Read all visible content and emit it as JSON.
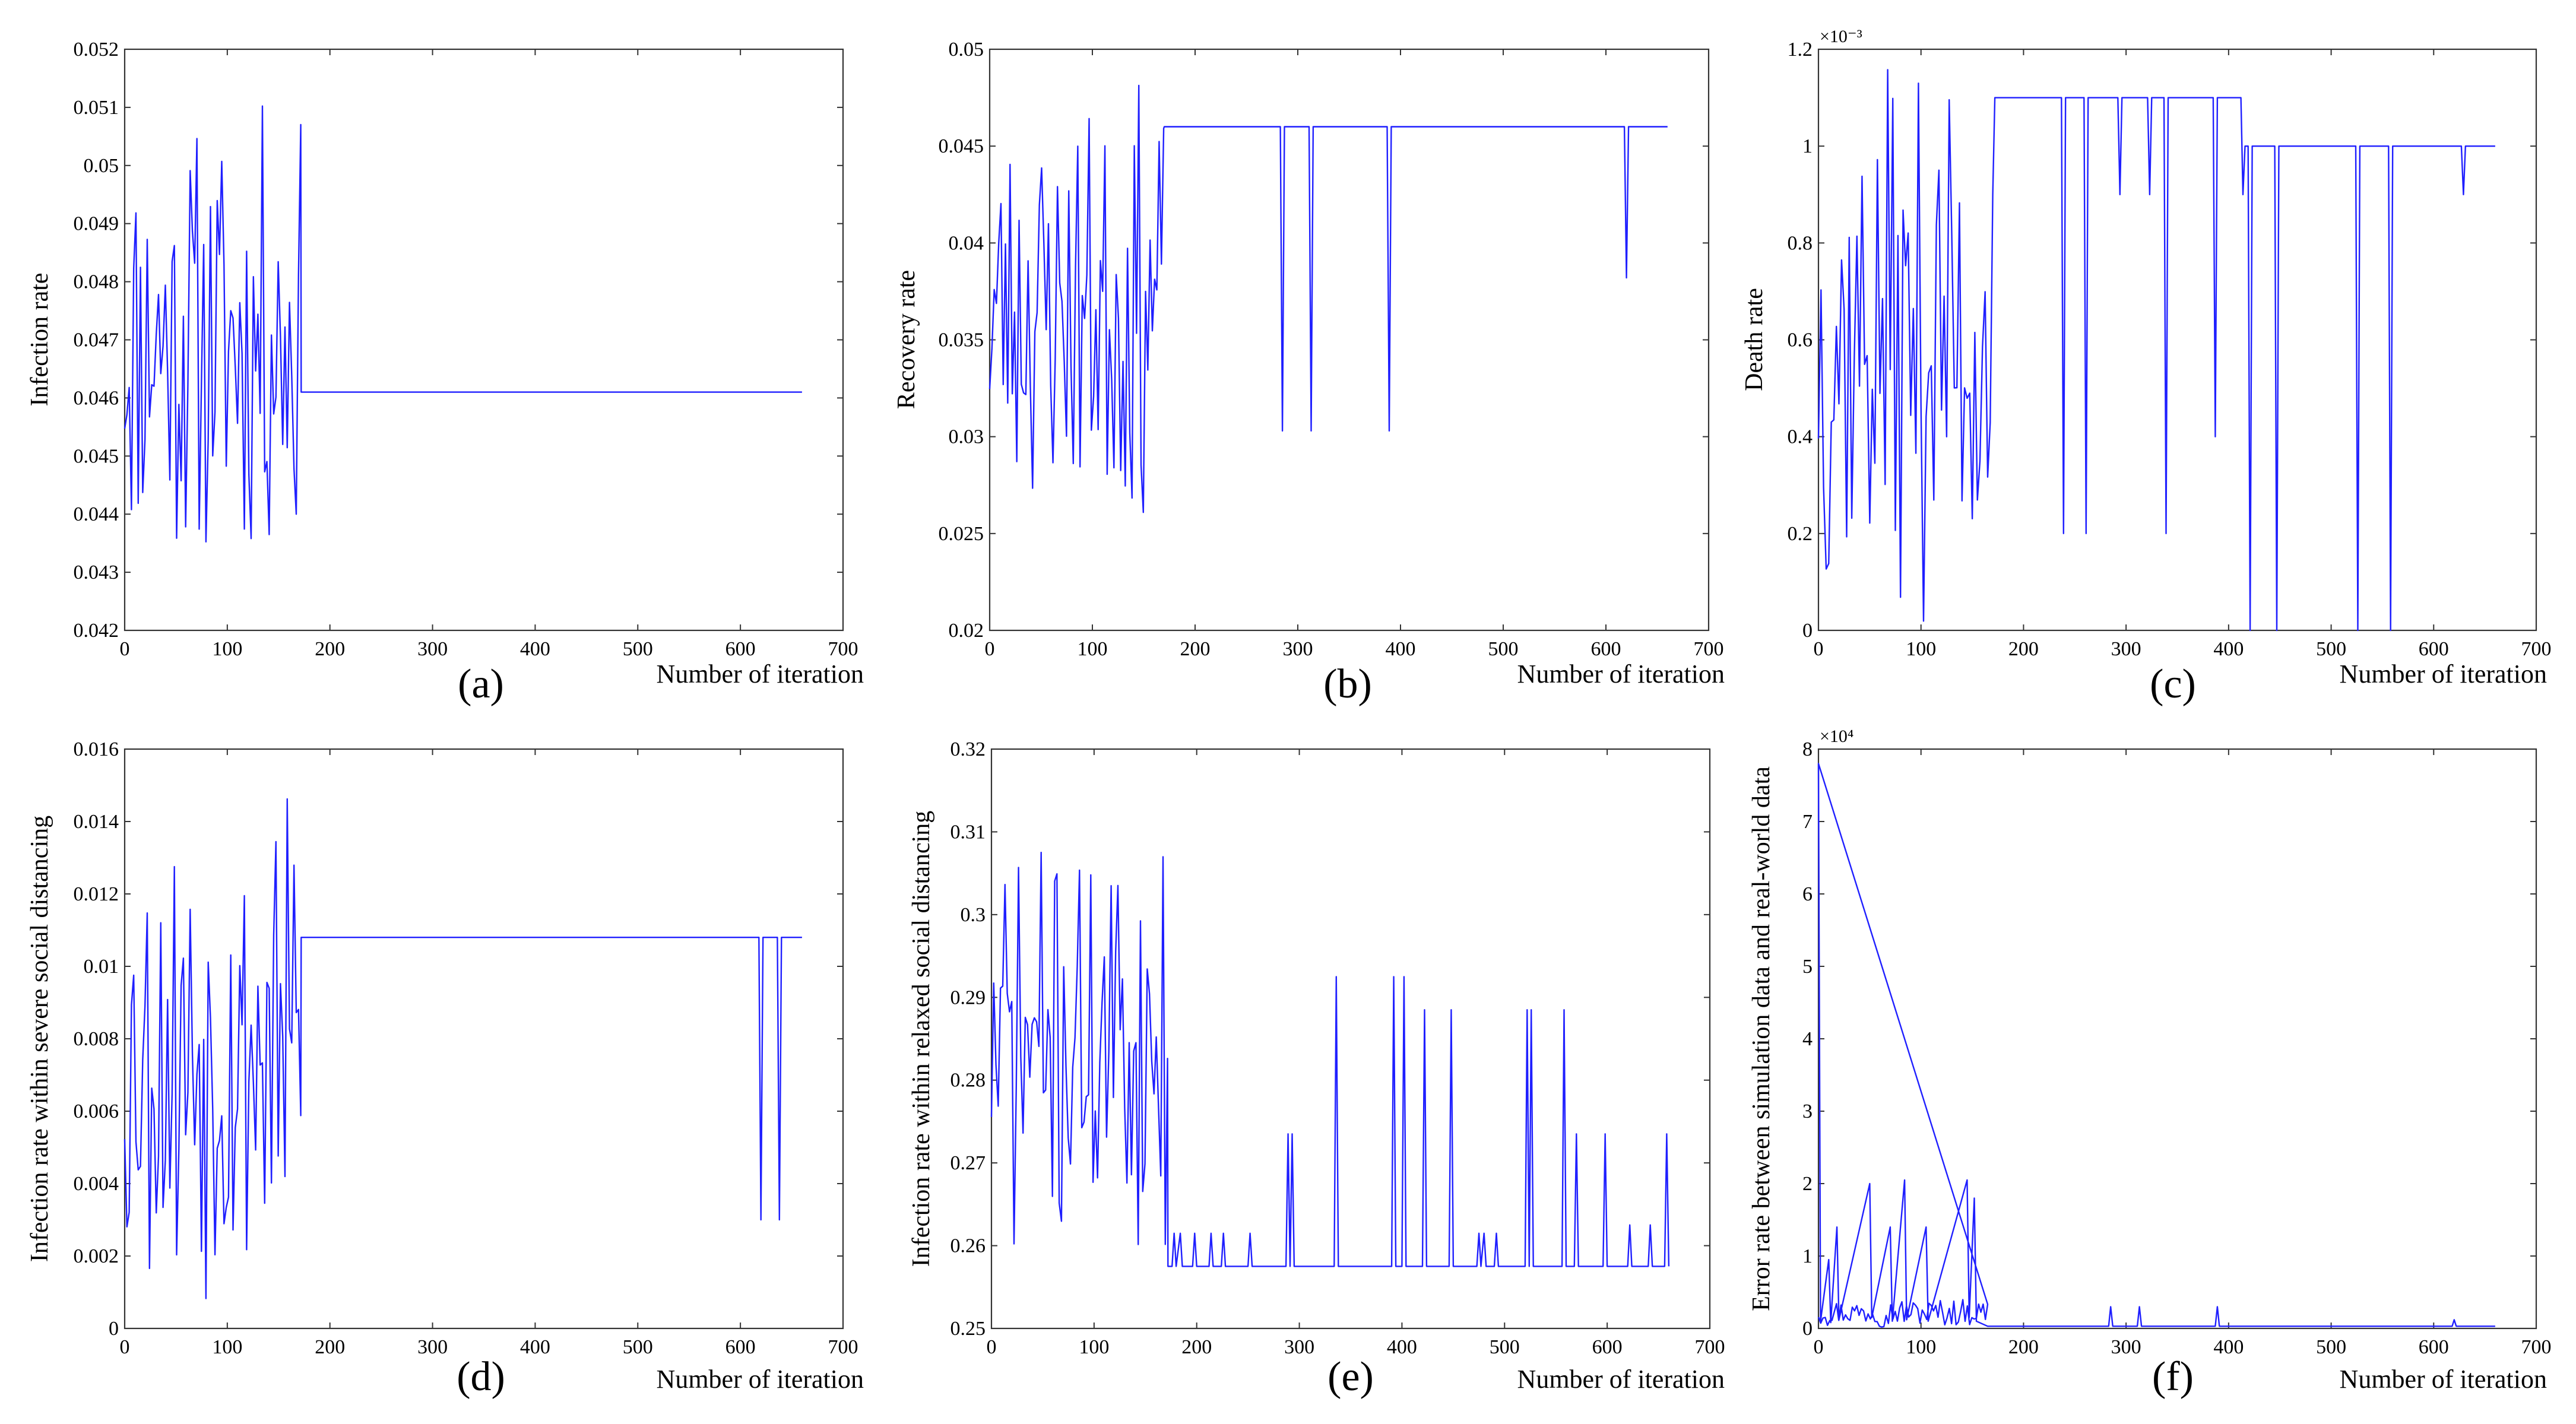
{
  "figure": {
    "accent_color": "#1f1fff"
  },
  "chart_data": [
    {
      "type": "line",
      "panel_label": "(a)",
      "ylabel": "Infection rate",
      "xlabel": "Number of iteration",
      "xlim": [
        0,
        700
      ],
      "ylim": [
        0.042,
        0.052
      ],
      "xticks": [
        "0",
        "100",
        "200",
        "300",
        "400",
        "500",
        "600",
        "700"
      ],
      "yticks": [
        "0.042",
        "0.043",
        "0.044",
        "0.045",
        "0.046",
        "0.047",
        "0.048",
        "0.049",
        "0.05",
        "0.051",
        "0.052"
      ],
      "exponent": null,
      "series": [
        {
          "name": "Infection rate",
          "color": "#1f1fff",
          "noisy_segment": {
            "x_start": 0,
            "x_end": 172,
            "step": 2.2,
            "low": 0.0427,
            "high": 0.0513,
            "seed": 11
          },
          "points": [
            [
              172,
              0.0461
            ],
            [
              660,
              0.0461
            ]
          ]
        }
      ]
    },
    {
      "type": "line",
      "panel_label": "(b)",
      "ylabel": "Recovery rate",
      "xlabel": "Number of iteration",
      "xlim": [
        0,
        700
      ],
      "ylim": [
        0.02,
        0.05
      ],
      "xticks": [
        "0",
        "100",
        "200",
        "300",
        "400",
        "500",
        "600",
        "700"
      ],
      "yticks": [
        "0.02",
        "0.025",
        "0.03",
        "0.035",
        "0.04",
        "0.045",
        "0.05"
      ],
      "exponent": null,
      "series": [
        {
          "name": "Recovery rate",
          "color": "#1f1fff",
          "noisy_segment": {
            "x_start": 0,
            "x_end": 170,
            "step": 2.2,
            "low": 0.0247,
            "high": 0.0485,
            "seed": 23
          },
          "points": [
            [
              170,
              0.046
            ],
            [
              283,
              0.046
            ],
            [
              285,
              0.0303
            ],
            [
              287,
              0.046
            ],
            [
              311,
              0.046
            ],
            [
              313,
              0.0303
            ],
            [
              315,
              0.046
            ],
            [
              387,
              0.046
            ],
            [
              389,
              0.0303
            ],
            [
              391,
              0.046
            ],
            [
              618,
              0.046
            ],
            [
              620,
              0.0382
            ],
            [
              622,
              0.046
            ],
            [
              660,
              0.046
            ]
          ]
        }
      ]
    },
    {
      "type": "line",
      "panel_label": "(c)",
      "ylabel": "Death rate",
      "xlabel": "Number of iteration",
      "xlim": [
        0,
        700
      ],
      "ylim": [
        0,
        0.0012
      ],
      "xticks": [
        "0",
        "100",
        "200",
        "300",
        "400",
        "500",
        "600",
        "700"
      ],
      "yticks": [
        "0",
        "0.2",
        "0.4",
        "0.6",
        "0.8",
        "1",
        "1.2"
      ],
      "exponent": "×10⁻³",
      "series": [
        {
          "name": "Death rate",
          "color": "#1f1fff",
          "noisy_segment": {
            "x_start": 0,
            "x_end": 172,
            "step": 2.5,
            "low": 0.0,
            "high": 0.0012,
            "seed": 37
          },
          "points": [
            [
              172,
              0.0011
            ],
            [
              237,
              0.0011
            ],
            [
              239,
              0.0002
            ],
            [
              241,
              0.0011
            ],
            [
              259,
              0.0011
            ],
            [
              261,
              0.0002
            ],
            [
              263,
              0.0011
            ],
            [
              292,
              0.0011
            ],
            [
              294,
              0.0009
            ],
            [
              296,
              0.0011
            ],
            [
              321,
              0.0011
            ],
            [
              323,
              0.0009
            ],
            [
              325,
              0.0011
            ],
            [
              337,
              0.0011
            ],
            [
              339,
              0.0002
            ],
            [
              341,
              0.0011
            ],
            [
              385,
              0.0011
            ],
            [
              387,
              0.0004
            ],
            [
              389,
              0.0011
            ],
            [
              412,
              0.0011
            ],
            [
              414,
              0.0009
            ],
            [
              416,
              0.001
            ],
            [
              419,
              0.001
            ],
            [
              421,
              0.0
            ],
            [
              423,
              0.001
            ],
            [
              445,
              0.001
            ],
            [
              447,
              0.0
            ],
            [
              449,
              0.001
            ],
            [
              524,
              0.001
            ],
            [
              526,
              0.0
            ],
            [
              528,
              0.001
            ],
            [
              556,
              0.001
            ],
            [
              558,
              0.0
            ],
            [
              560,
              0.001
            ],
            [
              627,
              0.001
            ],
            [
              629,
              0.0009
            ],
            [
              631,
              0.001
            ],
            [
              660,
              0.001
            ]
          ]
        }
      ]
    },
    {
      "type": "line",
      "panel_label": "(d)",
      "ylabel": "Infection rate within severe social distancing",
      "xlabel": "Number of iteration",
      "xlim": [
        0,
        700
      ],
      "ylim": [
        0,
        0.016
      ],
      "xticks": [
        "0",
        "100",
        "200",
        "300",
        "400",
        "500",
        "600",
        "700"
      ],
      "yticks": [
        "0",
        "0.002",
        "0.004",
        "0.006",
        "0.008",
        "0.01",
        "0.012",
        "0.014",
        "0.016"
      ],
      "exponent": null,
      "series": [
        {
          "name": "Infection rate within severe social distancing",
          "color": "#1f1fff",
          "noisy_segment": {
            "x_start": 0,
            "x_end": 172,
            "step": 2.2,
            "low": 0.0002,
            "high": 0.0152,
            "seed": 53
          },
          "points": [
            [
              172,
              0.0108
            ],
            [
              618,
              0.0108
            ],
            [
              620,
              0.003
            ],
            [
              622,
              0.0108
            ],
            [
              636,
              0.0108
            ],
            [
              638,
              0.003
            ],
            [
              640,
              0.0108
            ],
            [
              660,
              0.0108
            ]
          ]
        }
      ]
    },
    {
      "type": "line",
      "panel_label": "(e)",
      "ylabel": "Infection rate within relaxed social distancing",
      "xlabel": "Number of iteration",
      "xlim": [
        0,
        700
      ],
      "ylim": [
        0.25,
        0.32
      ],
      "xticks": [
        "0",
        "100",
        "200",
        "300",
        "400",
        "500",
        "600",
        "700"
      ],
      "yticks": [
        "0.25",
        "0.26",
        "0.27",
        "0.28",
        "0.29",
        "0.3",
        "0.31",
        "0.32"
      ],
      "exponent": null,
      "series": [
        {
          "name": "Infection rate within relaxed social distancing",
          "color": "#1f1fff",
          "noisy_segment": {
            "x_start": 0,
            "x_end": 172,
            "step": 2.2,
            "low": 0.2575,
            "high": 0.3105,
            "seed": 71
          },
          "points": [
            [
              172,
              0.2575
            ],
            [
              176,
              0.2575
            ],
            [
              178,
              0.2615
            ],
            [
              180,
              0.2575
            ],
            [
              184,
              0.2615
            ],
            [
              186,
              0.2575
            ],
            [
              196,
              0.2575
            ],
            [
              198,
              0.2615
            ],
            [
              200,
              0.2575
            ],
            [
              212,
              0.2575
            ],
            [
              214,
              0.2615
            ],
            [
              216,
              0.2575
            ],
            [
              224,
              0.2575
            ],
            [
              226,
              0.2615
            ],
            [
              228,
              0.2575
            ],
            [
              250,
              0.2575
            ],
            [
              252,
              0.2615
            ],
            [
              254,
              0.2575
            ],
            [
              287,
              0.2575
            ],
            [
              289,
              0.2735
            ],
            [
              291,
              0.2575
            ],
            [
              293,
              0.2735
            ],
            [
              295,
              0.2575
            ],
            [
              334,
              0.2575
            ],
            [
              336,
              0.2925
            ],
            [
              338,
              0.2575
            ],
            [
              390,
              0.2575
            ],
            [
              392,
              0.2925
            ],
            [
              394,
              0.2575
            ],
            [
              400,
              0.2575
            ],
            [
              402,
              0.2925
            ],
            [
              404,
              0.2575
            ],
            [
              420,
              0.2575
            ],
            [
              422,
              0.2885
            ],
            [
              424,
              0.2575
            ],
            [
              446,
              0.2575
            ],
            [
              448,
              0.2885
            ],
            [
              450,
              0.2575
            ],
            [
              473,
              0.2575
            ],
            [
              475,
              0.2615
            ],
            [
              477,
              0.2575
            ],
            [
              480,
              0.2615
            ],
            [
              482,
              0.2575
            ],
            [
              490,
              0.2575
            ],
            [
              492,
              0.2615
            ],
            [
              494,
              0.2575
            ],
            [
              520,
              0.2575
            ],
            [
              522,
              0.2885
            ],
            [
              524,
              0.2575
            ],
            [
              526,
              0.2885
            ],
            [
              528,
              0.2575
            ],
            [
              556,
              0.2575
            ],
            [
              558,
              0.2885
            ],
            [
              560,
              0.2575
            ],
            [
              568,
              0.2575
            ],
            [
              570,
              0.2735
            ],
            [
              572,
              0.2575
            ],
            [
              596,
              0.2575
            ],
            [
              598,
              0.2735
            ],
            [
              600,
              0.2575
            ],
            [
              620,
              0.2575
            ],
            [
              622,
              0.2625
            ],
            [
              624,
              0.2575
            ],
            [
              640,
              0.2575
            ],
            [
              642,
              0.2625
            ],
            [
              644,
              0.2575
            ],
            [
              656,
              0.2575
            ],
            [
              658,
              0.2735
            ],
            [
              660,
              0.2575
            ]
          ]
        }
      ]
    },
    {
      "type": "line",
      "panel_label": "(f)",
      "ylabel": "Error rate between simulation data and real-world data",
      "xlabel": "Number of iteration",
      "xlim": [
        0,
        700
      ],
      "ylim": [
        0,
        80000
      ],
      "xticks": [
        "0",
        "100",
        "200",
        "300",
        "400",
        "500",
        "600",
        "700"
      ],
      "yticks": [
        "0",
        "1",
        "2",
        "3",
        "4",
        "5",
        "6",
        "7",
        "8"
      ],
      "exponent": "×10⁴",
      "series": [
        {
          "name": "Error rate between simulation data and real-world data",
          "color": "#1f1fff",
          "noisy_segment": {
            "x_start": 0,
            "x_end": 165,
            "step": 2.2,
            "low": 0,
            "high": 4500,
            "seed": 97
          },
          "points": [
            [
              0,
              78000
            ],
            [
              2,
              1000
            ],
            [
              10,
              9500
            ],
            [
              12,
              800
            ],
            [
              18,
              14000
            ],
            [
              20,
              1200
            ],
            [
              50,
              20000
            ],
            [
              52,
              1500
            ],
            [
              70,
              14000
            ],
            [
              72,
              1000
            ],
            [
              84,
              20500
            ],
            [
              86,
              1200
            ],
            [
              105,
              14000
            ],
            [
              107,
              1000
            ],
            [
              145,
              20500
            ],
            [
              147,
              1500
            ],
            [
              152,
              18000
            ],
            [
              154,
              1000
            ],
            [
              165,
              300
            ],
            [
              283,
              300
            ],
            [
              285,
              3000
            ],
            [
              287,
              300
            ],
            [
              311,
              300
            ],
            [
              313,
              3000
            ],
            [
              315,
              300
            ],
            [
              387,
              300
            ],
            [
              389,
              3000
            ],
            [
              391,
              300
            ],
            [
              618,
              300
            ],
            [
              620,
              1200
            ],
            [
              622,
              300
            ],
            [
              660,
              300
            ]
          ]
        }
      ]
    }
  ]
}
